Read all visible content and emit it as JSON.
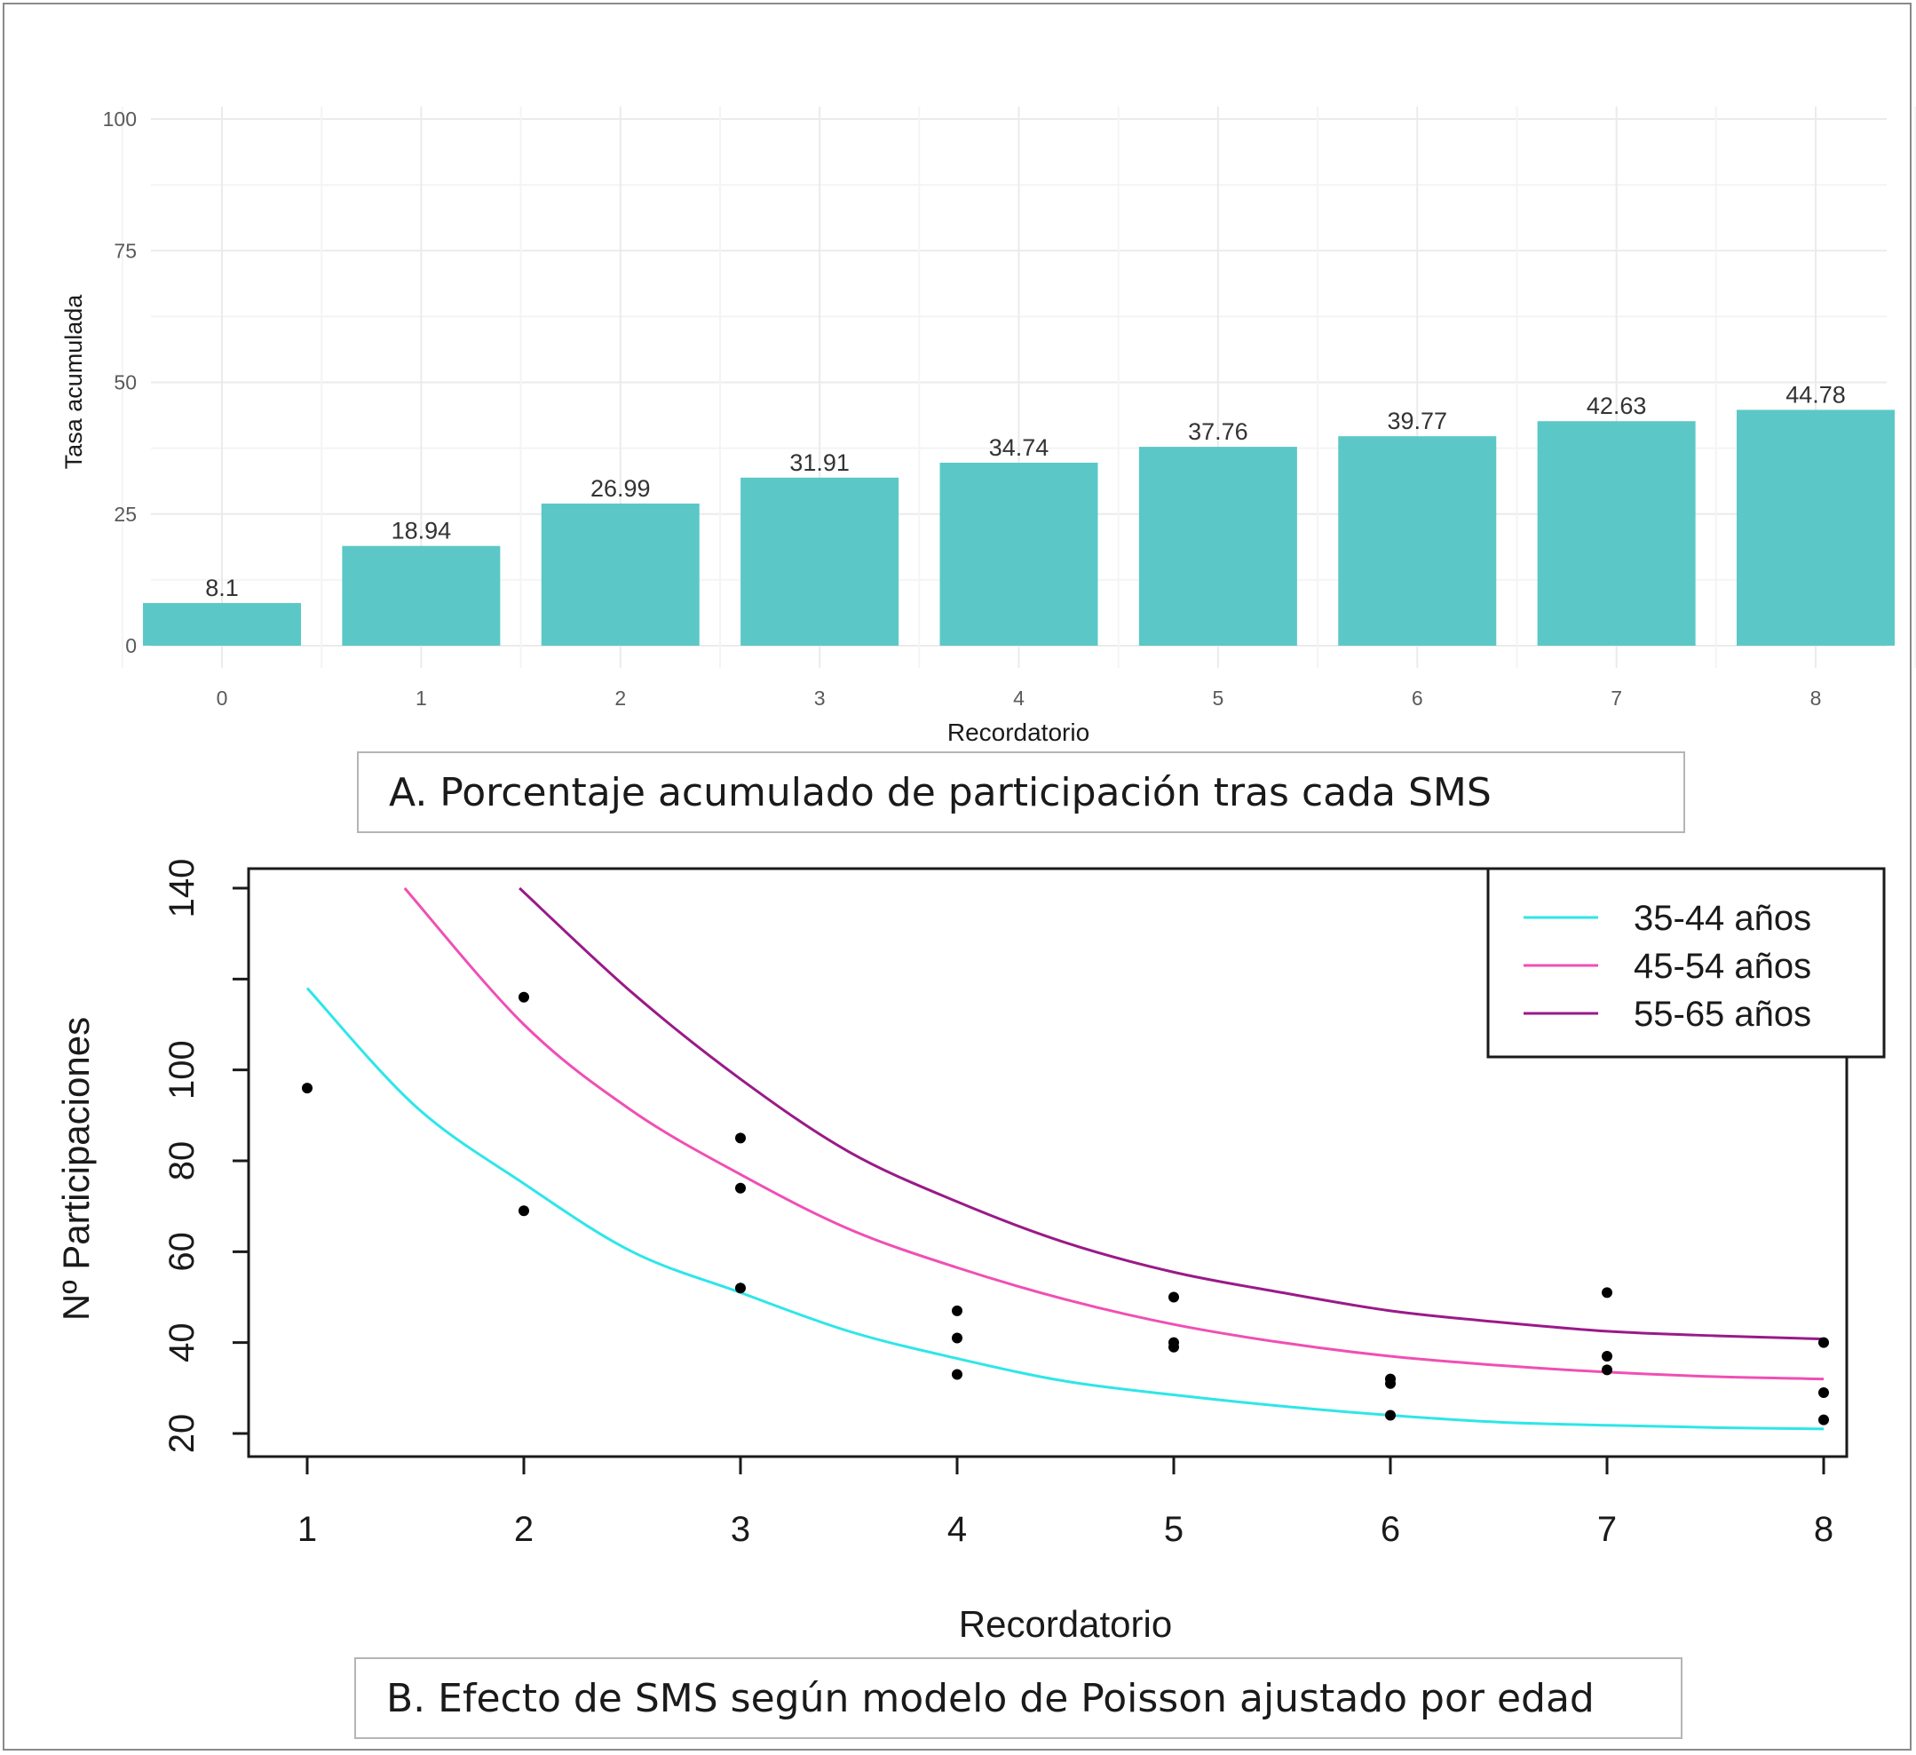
{
  "caption_a": "A. Porcentaje acumulado de participación tras cada SMS",
  "caption_b": "B. Efecto de SMS según modelo de Poisson ajustado por edad",
  "colors": {
    "bar_fill": "#5bc8c7",
    "line_35_44": "#2ee6e8",
    "line_45_54": "#f04fb4",
    "line_55_65": "#9a1a88",
    "points": "#000000"
  },
  "chart_data": [
    {
      "type": "bar",
      "title": "",
      "xlabel": "Recordatorio",
      "ylabel": "Tasa acumulada",
      "categories": [
        "0",
        "1",
        "2",
        "3",
        "4",
        "5",
        "6",
        "7",
        "8"
      ],
      "values": [
        8.1,
        18.94,
        26.99,
        31.91,
        34.74,
        37.76,
        39.77,
        42.63,
        44.78
      ],
      "data_labels": [
        "8.1",
        "18.94",
        "26.99",
        "31.91",
        "34.74",
        "37.76",
        "39.77",
        "42.63",
        "44.78"
      ],
      "ylim": [
        0,
        100
      ],
      "yticks": [
        0,
        25,
        50,
        75,
        100
      ],
      "grid": true
    },
    {
      "type": "line",
      "title": "",
      "xlabel": "Recordatorio",
      "ylabel": "Nº Participaciones",
      "xlim": [
        1,
        8
      ],
      "ylim": [
        20,
        140
      ],
      "xticks": [
        1,
        2,
        3,
        4,
        5,
        6,
        7,
        8
      ],
      "yticks": [
        20,
        40,
        60,
        80,
        100,
        120,
        140
      ],
      "ytick_labels": [
        "20",
        "40",
        "60",
        "80",
        "100",
        "",
        "140"
      ],
      "grid": false,
      "legend_position": "top-right",
      "series": [
        {
          "name": "35-44 años",
          "x": [
            1,
            1.5,
            2,
            2.5,
            3,
            3.5,
            4,
            4.5,
            5,
            5.5,
            6,
            6.5,
            7,
            7.5,
            8
          ],
          "y": [
            118,
            92,
            75,
            60,
            51,
            42.5,
            36.5,
            31.5,
            28.5,
            26,
            24,
            22.5,
            21.8,
            21.3,
            21
          ]
        },
        {
          "name": "45-54 años",
          "x": [
            1.45,
            2,
            2.5,
            3,
            3.5,
            4,
            4.5,
            5,
            5.5,
            6,
            6.5,
            7,
            7.5,
            8
          ],
          "y": [
            140,
            110,
            91,
            77,
            65,
            56.5,
            49.5,
            44,
            40,
            37,
            35,
            33.5,
            32.5,
            32
          ]
        },
        {
          "name": "55-65 años",
          "x": [
            1.98,
            2.5,
            3,
            3.5,
            4,
            4.5,
            5,
            5.5,
            6,
            6.5,
            7,
            7.5,
            8
          ],
          "y": [
            140,
            117,
            98,
            82,
            71,
            62,
            55.5,
            51,
            47,
            44.5,
            42.5,
            41.5,
            40.8
          ]
        }
      ],
      "points": [
        {
          "x": 1,
          "y": 96
        },
        {
          "x": 2,
          "y": 116
        },
        {
          "x": 2,
          "y": 69
        },
        {
          "x": 3,
          "y": 85
        },
        {
          "x": 3,
          "y": 74
        },
        {
          "x": 3,
          "y": 52
        },
        {
          "x": 4,
          "y": 47
        },
        {
          "x": 4,
          "y": 41
        },
        {
          "x": 4,
          "y": 33
        },
        {
          "x": 5,
          "y": 50
        },
        {
          "x": 5,
          "y": 40
        },
        {
          "x": 5,
          "y": 39
        },
        {
          "x": 6,
          "y": 32
        },
        {
          "x": 6,
          "y": 31
        },
        {
          "x": 6,
          "y": 24
        },
        {
          "x": 7,
          "y": 51
        },
        {
          "x": 7,
          "y": 37
        },
        {
          "x": 7,
          "y": 34
        },
        {
          "x": 8,
          "y": 40
        },
        {
          "x": 8,
          "y": 29
        },
        {
          "x": 8,
          "y": 23
        }
      ]
    }
  ]
}
